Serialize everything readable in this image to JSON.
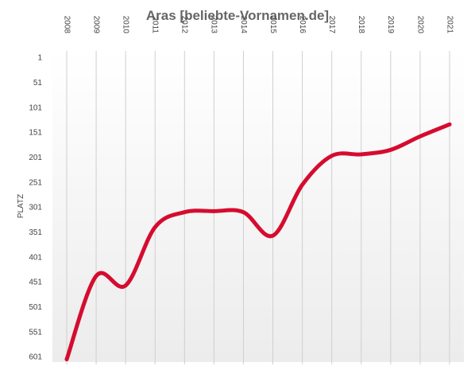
{
  "chart_data": {
    "type": "line",
    "title": "Aras [beliebte-Vornamen.de]",
    "xlabel": "",
    "ylabel": "PLATZ",
    "x": [
      "2008",
      "2009",
      "2010",
      "2011",
      "2012",
      "2013",
      "2014",
      "2015",
      "2016",
      "2017",
      "2018",
      "2019",
      "2020",
      "2021"
    ],
    "series": [
      {
        "values": [
          605,
          438,
          457,
          340,
          310,
          308,
          310,
          357,
          255,
          197,
          194,
          185,
          158,
          134
        ]
      }
    ],
    "y_ticks": [
      1,
      51,
      101,
      151,
      201,
      251,
      301,
      351,
      401,
      451,
      501,
      551,
      601
    ],
    "ylim": [
      1,
      606
    ],
    "y_inverted": true,
    "x_axis_position": "top",
    "x_tick_rotation": 90,
    "grid": {
      "vertical": true,
      "horizontal": false
    },
    "legend": "none",
    "colors": {
      "line": "#d50c2f",
      "title": "#666666",
      "grid": "#cfcfcf",
      "plot_bg_top": "#ffffff",
      "plot_bg_bottom": "#ececec"
    }
  }
}
